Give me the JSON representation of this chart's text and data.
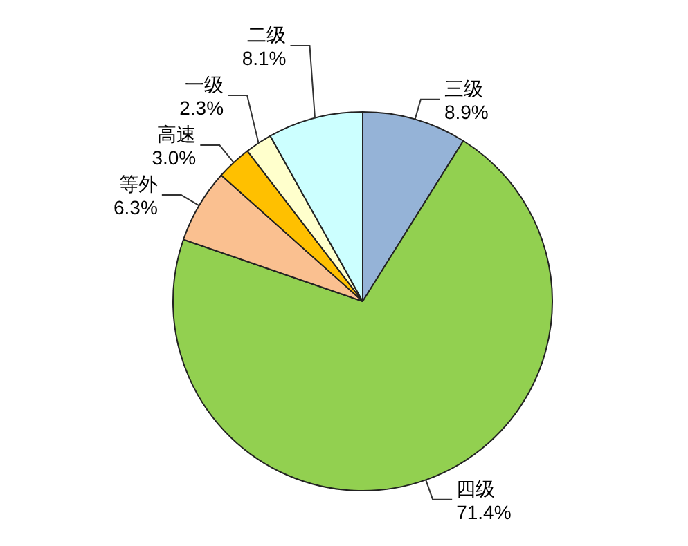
{
  "chart_data": {
    "type": "pie",
    "categories": [
      "三级",
      "四级",
      "等外",
      "高速",
      "一级",
      "二级"
    ],
    "values": [
      8.9,
      71.4,
      6.3,
      3.0,
      2.3,
      8.1
    ],
    "value_labels": [
      "8.9%",
      "71.4%",
      "6.3%",
      "3.0%",
      "2.3%",
      "8.1%"
    ],
    "colors": [
      "#95b3d7",
      "#92d050",
      "#fac090",
      "#ffc000",
      "#ffffcc",
      "#ccffff"
    ]
  }
}
